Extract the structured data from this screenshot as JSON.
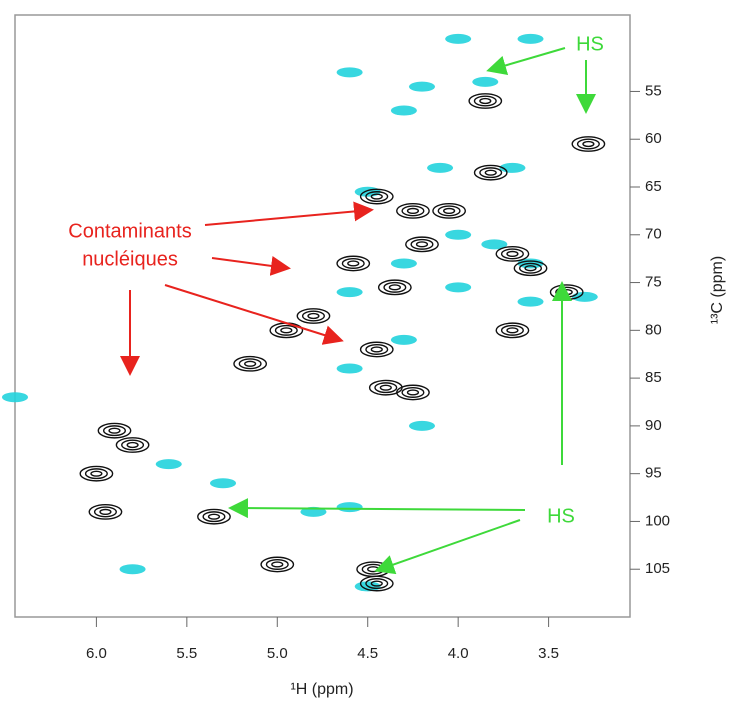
{
  "chart_data": {
    "type": "scatter",
    "x_label": "¹H (ppm)",
    "y_label": "¹³C (ppm)",
    "xlim": [
      6.45,
      3.05
    ],
    "ylim": [
      47,
      110
    ],
    "xticks": [
      {
        "value": 6,
        "label": "6.0"
      },
      5.5,
      {
        "value": 5,
        "label": "5.0"
      },
      4.5,
      {
        "value": 4,
        "label": "4.0"
      },
      3.5
    ],
    "yticks": [
      55,
      60,
      65,
      70,
      75,
      80,
      85,
      90,
      95,
      100,
      105
    ],
    "series": [
      {
        "color": "#22d3dd",
        "x": [
          4.0,
          3.6,
          4.6,
          4.2,
          3.85,
          4.3,
          4.1,
          3.7,
          4.5,
          4.0,
          3.8,
          3.6,
          4.3,
          4.0,
          3.6,
          4.6,
          3.3,
          4.3,
          4.6,
          4.2,
          5.6,
          5.3,
          4.8,
          4.5,
          6.45,
          5.8,
          4.6
        ],
        "values": [
          49.5,
          49.5,
          53,
          54.5,
          54,
          57,
          63,
          63,
          65.5,
          70,
          71,
          73,
          73,
          75.5,
          77,
          76,
          76.5,
          81,
          84,
          90,
          94,
          96,
          99,
          106.8,
          87,
          105,
          98.5
        ]
      },
      {
        "color": "#111111",
        "x": [
          3.85,
          3.28,
          3.82,
          4.45,
          4.25,
          4.05,
          4.58,
          4.35,
          4.8,
          4.95,
          3.7,
          3.6,
          3.4,
          3.7,
          4.2,
          4.45,
          4.4,
          4.25,
          5.15,
          5.9,
          5.8,
          6.0,
          5.35,
          5.95,
          4.47,
          4.45,
          5.0
        ],
        "values": [
          56,
          60.5,
          63.5,
          66,
          67.5,
          67.5,
          73,
          75.5,
          78.5,
          80,
          72,
          73.5,
          76,
          80,
          71,
          82,
          86,
          86.5,
          83.5,
          90.5,
          92,
          95,
          99.5,
          99,
          105,
          106.5,
          104.5
        ]
      }
    ],
    "annotations": [
      {
        "text": "Contaminants",
        "color": "#e8231e"
      },
      {
        "text": "nucléiques",
        "color": "#e8231e"
      },
      {
        "text": "HS",
        "color": "#3ed93a"
      },
      {
        "text": "HS",
        "color": "#3ed93a"
      }
    ]
  }
}
